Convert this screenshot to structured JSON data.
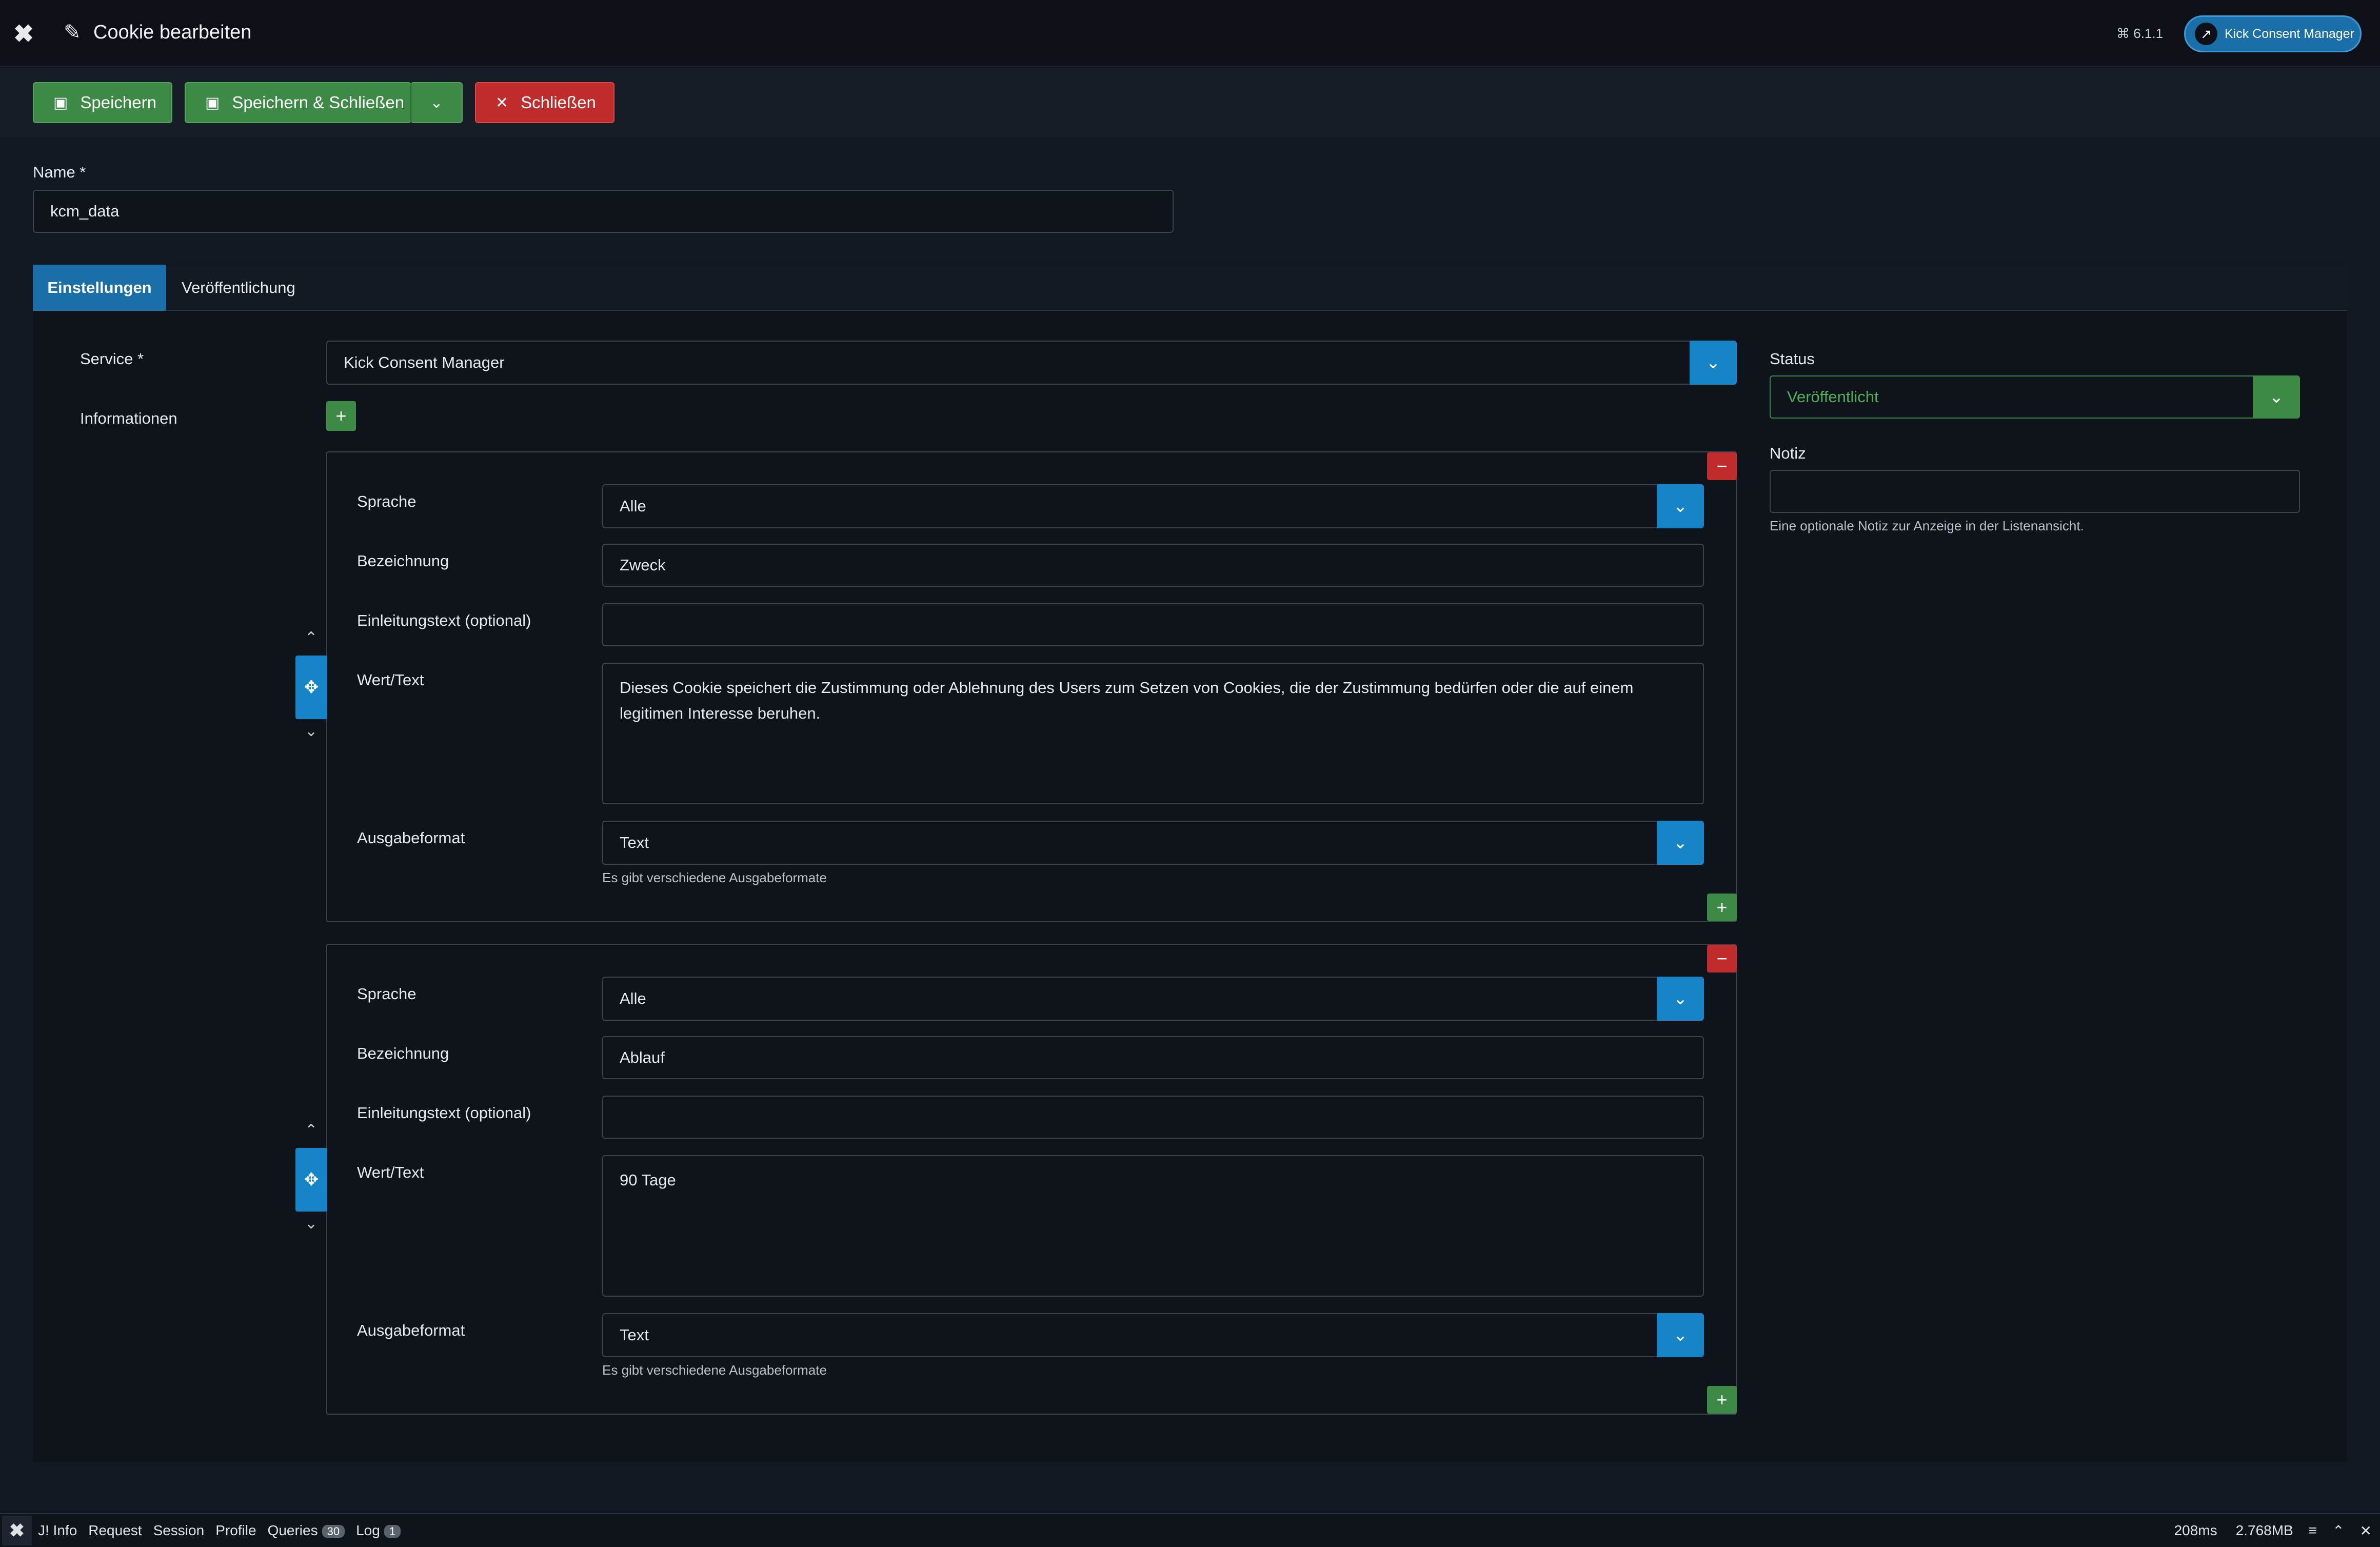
{
  "header": {
    "title": "Cookie bearbeiten",
    "version": "6.1.1",
    "site_button_label": "Kick Consent Manager"
  },
  "toolbar": {
    "save_label": "Speichern",
    "save_close_label": "Speichern & Schließen",
    "close_label": "Schließen"
  },
  "name_field": {
    "label": "Name *",
    "value": "kcm_data"
  },
  "tabs": [
    {
      "label": "Einstellungen",
      "active": true
    },
    {
      "label": "Veröffentlichung",
      "active": false
    }
  ],
  "service": {
    "label": "Service *",
    "value": "Kick Consent Manager"
  },
  "informationen_label": "Informationen",
  "subforms": [
    {
      "sprache_label": "Sprache",
      "sprache_value": "Alle",
      "bezeichnung_label": "Bezeichnung",
      "bezeichnung_value": "Zweck",
      "einleitung_label": "Einleitungstext (optional)",
      "einleitung_value": "",
      "wert_label": "Wert/Text",
      "wert_value": "Dieses Cookie speichert die Zustimmung oder Ablehnung des Users zum Setzen von Cookies, die der Zustimmung bedürfen oder die auf einem legitimen Interesse beruhen.",
      "format_label": "Ausgabeformat",
      "format_value": "Text",
      "format_hint": "Es gibt verschiedene Ausgabeformate"
    },
    {
      "sprache_label": "Sprache",
      "sprache_value": "Alle",
      "bezeichnung_label": "Bezeichnung",
      "bezeichnung_value": "Ablauf",
      "einleitung_label": "Einleitungstext (optional)",
      "einleitung_value": "",
      "wert_label": "Wert/Text",
      "wert_value": "90 Tage",
      "format_label": "Ausgabeformat",
      "format_value": "Text",
      "format_hint": "Es gibt verschiedene Ausgabeformate"
    }
  ],
  "status": {
    "label": "Status",
    "value": "Veröffentlicht"
  },
  "notiz": {
    "label": "Notiz",
    "value": "",
    "hint": "Eine optionale Notiz zur Anzeige in der Listenansicht."
  },
  "debugbar": {
    "items": [
      "J! Info",
      "Request",
      "Session",
      "Profile",
      "Queries",
      "Log"
    ],
    "queries_count": "30",
    "log_count": "1",
    "time": "208ms",
    "memory": "2.768MB"
  },
  "colors": {
    "primary": "#1585c8",
    "success": "#3c8a45",
    "danger": "#c02c2c",
    "background": "#121821"
  }
}
